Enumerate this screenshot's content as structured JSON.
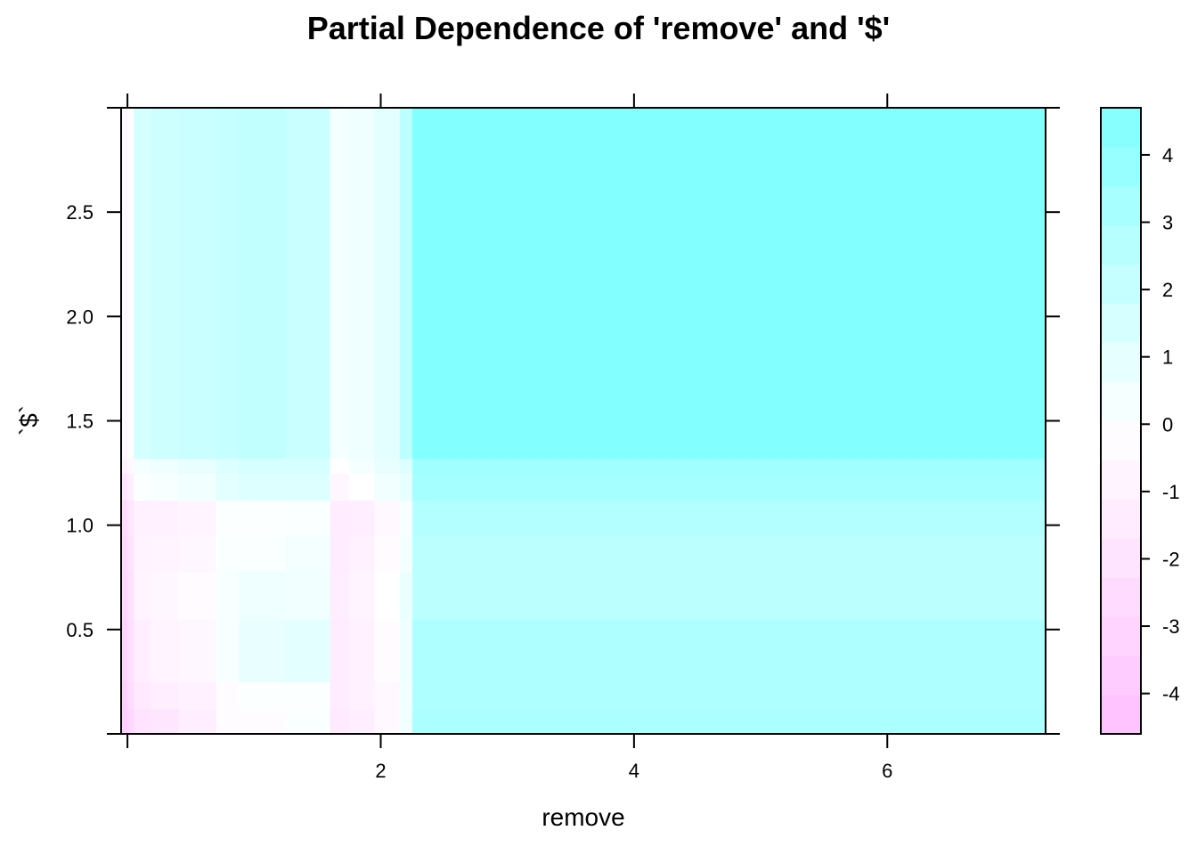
{
  "chart_data": {
    "type": "heatmap",
    "title": "Partial Dependence  of 'remove' and '$'",
    "xlabel": "remove",
    "ylabel": "`$`",
    "xlim": [
      -0.05,
      7.25
    ],
    "ylim": [
      0.0,
      3.0
    ],
    "x_ticks": [
      0,
      2,
      4,
      6
    ],
    "x_tick_labels": [
      "",
      "2",
      "4",
      "6"
    ],
    "y_ticks": [
      0.5,
      1.0,
      1.5,
      2.0,
      2.5
    ],
    "y_tick_labels": [
      "0.5",
      "1.0",
      "1.5",
      "2.0",
      "2.5"
    ],
    "colorbar": {
      "range": [
        -4.6,
        4.7
      ],
      "ticks": [
        -4,
        -3,
        -2,
        -1,
        0,
        1,
        2,
        3,
        4
      ],
      "tick_labels": [
        "-4",
        "-3",
        "-2",
        "-1",
        "0",
        "1",
        "2",
        "3",
        "4"
      ],
      "colors": [
        "#ff80ff",
        "#00ffff"
      ]
    },
    "x_breaks": [
      -0.05,
      0.0,
      0.05,
      0.18,
      0.4,
      0.7,
      0.88,
      1.25,
      1.6,
      1.75,
      1.95,
      2.15,
      2.25,
      2.35,
      7.25
    ],
    "y_breaks": [
      0.0,
      0.12,
      0.25,
      0.55,
      0.78,
      0.95,
      1.12,
      1.25,
      1.32,
      3.0
    ],
    "z": [
      [
        -3.6,
        -3.0,
        -2.0,
        -1.8,
        -1.2,
        -0.2,
        -0.2,
        0.2,
        -1.5,
        -1.2,
        -0.5,
        0.5,
        3.1,
        3.1
      ],
      [
        -3.4,
        -2.6,
        -1.6,
        -1.2,
        -1.0,
        -0.2,
        0.1,
        0.1,
        -1.4,
        -1.0,
        -0.4,
        0.5,
        3.0,
        3.0
      ],
      [
        -3.2,
        -2.4,
        -1.2,
        -0.8,
        -0.6,
        0.3,
        0.8,
        1.0,
        -1.3,
        -1.0,
        -0.2,
        0.6,
        3.0,
        3.0
      ],
      [
        -3.0,
        -2.2,
        -0.8,
        -0.6,
        -0.3,
        0.3,
        0.6,
        0.5,
        -1.2,
        -0.8,
        0.0,
        0.7,
        2.5,
        2.5
      ],
      [
        -2.8,
        -2.0,
        -0.9,
        -0.8,
        -0.6,
        0.2,
        0.2,
        0.4,
        -1.3,
        -1.0,
        -0.3,
        0.4,
        2.5,
        2.5
      ],
      [
        -2.6,
        -1.8,
        -1.0,
        -1.0,
        -0.8,
        0.1,
        0.1,
        0.2,
        -1.4,
        -1.2,
        -0.4,
        0.3,
        2.8,
        2.8
      ],
      [
        -1.8,
        -1.2,
        0.1,
        0.3,
        0.5,
        1.0,
        1.2,
        1.2,
        -0.6,
        0.0,
        0.5,
        0.9,
        3.3,
        3.3
      ],
      [
        -1.0,
        -0.5,
        0.4,
        0.6,
        0.8,
        1.3,
        1.5,
        1.5,
        0.0,
        0.4,
        0.8,
        1.2,
        3.5,
        3.5
      ],
      [
        -0.6,
        -0.2,
        1.6,
        1.8,
        2.0,
        2.1,
        2.3,
        2.0,
        0.4,
        0.6,
        1.0,
        2.5,
        4.6,
        4.6
      ]
    ]
  }
}
